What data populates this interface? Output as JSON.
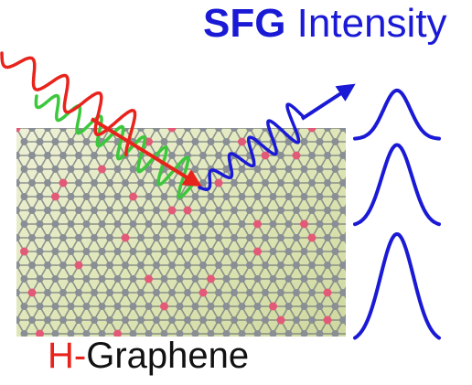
{
  "title": {
    "part1": "SFG",
    "part2": " Intensity"
  },
  "label": {
    "prefix": "H-",
    "suffix": "Graphene"
  },
  "peaks": {
    "relative_heights": [
      0.45,
      0.75,
      1.0
    ]
  },
  "colors": {
    "title": "#1a1ad6",
    "label_prefix": "#e8231c",
    "label_suffix": "#111111",
    "visible_wave": "#e8231c",
    "ir_wave": "#3cc83c",
    "sfg_wave": "#1a1ad6",
    "peaks": "#1a1ad6",
    "hydrogen_atom": "#e25a78",
    "carbon_atom": "#8a8f96",
    "lattice_bond": "#6e737a",
    "sheet_fill": "#dfe6b8"
  },
  "icons": {
    "visible_beam": "red-laser-wave",
    "ir_beam": "green-infrared-wave",
    "sfg_beam": "blue-sfg-wave-arrow",
    "sheet": "graphene-lattice-sheet"
  }
}
